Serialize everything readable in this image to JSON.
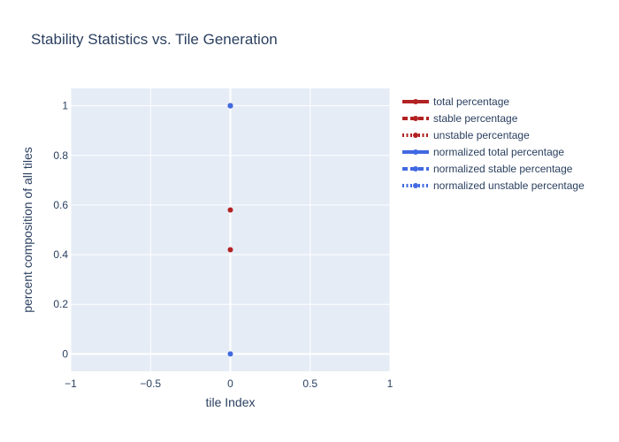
{
  "chart_data": {
    "type": "scatter",
    "title": "Stability Statistics vs. Tile Generation",
    "xlabel": "tile Index",
    "ylabel": "percent composition of all tiles",
    "xlim": [
      -1,
      1
    ],
    "ylim": [
      -0.07,
      1.07
    ],
    "x_ticks": [
      -1,
      -0.5,
      0,
      0.5,
      1
    ],
    "x_tick_labels": [
      "−1",
      "−0.5",
      "0",
      "0.5",
      "1"
    ],
    "y_ticks": [
      0,
      0.2,
      0.4,
      0.6,
      0.8,
      1
    ],
    "y_tick_labels": [
      "0",
      "0.2",
      "0.4",
      "0.6",
      "0.8",
      "1"
    ],
    "grid": true,
    "legend_position": "right",
    "series": [
      {
        "name": "total percentage",
        "color": "#b22222",
        "dash": "solid",
        "x": [
          0
        ],
        "y": [
          1
        ]
      },
      {
        "name": "stable percentage",
        "color": "#b22222",
        "dash": "dash",
        "x": [
          0
        ],
        "y": [
          0.58
        ]
      },
      {
        "name": "unstable percentage",
        "color": "#b22222",
        "dash": "dot",
        "x": [
          0
        ],
        "y": [
          0.42
        ]
      },
      {
        "name": "normalized total percentage",
        "color": "#4169e1",
        "dash": "solid",
        "x": [
          0
        ],
        "y": [
          1
        ]
      },
      {
        "name": "normalized stable percentage",
        "color": "#4169e1",
        "dash": "dash",
        "x": [
          0
        ],
        "y": [
          0
        ]
      },
      {
        "name": "normalized unstable percentage",
        "color": "#4169e1",
        "dash": "dot",
        "x": [
          0
        ],
        "y": [
          1
        ]
      }
    ]
  }
}
